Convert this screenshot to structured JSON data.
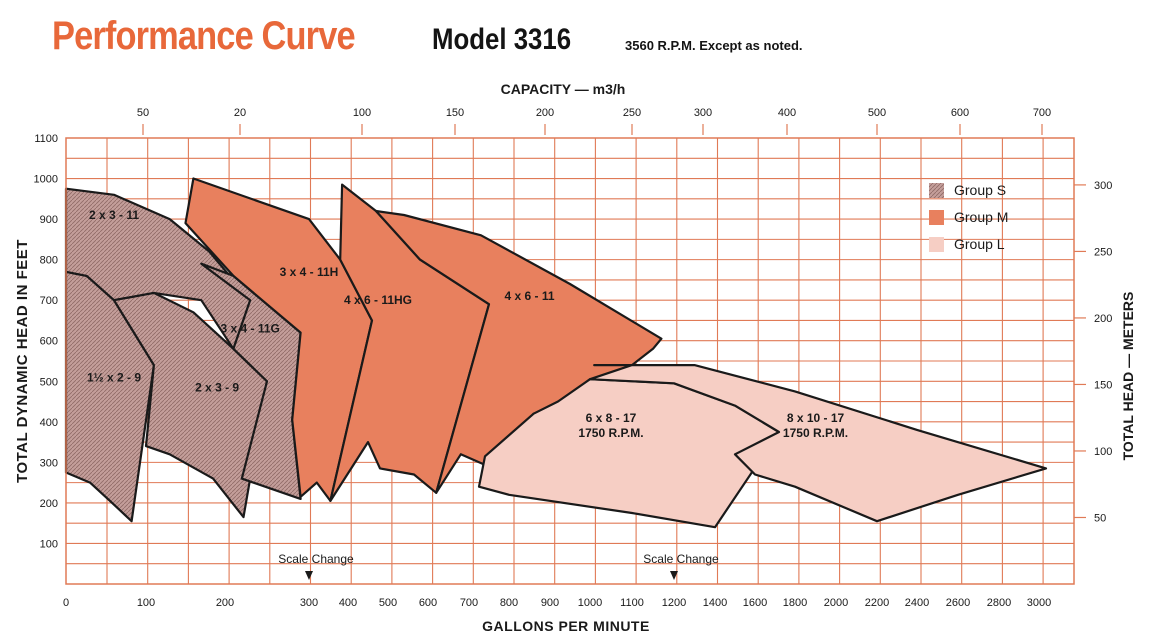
{
  "header": {
    "title": "Performance Curve",
    "model": "Model 3316",
    "note": "3560 R.P.M. Except as noted."
  },
  "chart_data": {
    "type": "area",
    "title": "Performance Curve Model 3316",
    "subtitle": "3560 R.P.M. Except as noted.",
    "xlabel": "GALLONS PER MINUTE",
    "ylabel": "TOTAL DYNAMIC HEAD IN FEET",
    "x2label": "CAPACITY — m3/h",
    "y2label": "TOTAL HEAD — METERS",
    "xticks": [
      "0",
      "100",
      "200",
      "300",
      "400",
      "500",
      "600",
      "700",
      "800",
      "900",
      "1000",
      "1100",
      "1200",
      "1400",
      "1600",
      "1800",
      "2000",
      "2200",
      "2400",
      "2600",
      "2800",
      "3000"
    ],
    "x2ticks": [
      "50",
      "20",
      "100",
      "150",
      "200",
      "250",
      "300",
      "400",
      "500",
      "600",
      "700"
    ],
    "yticks": [
      "100",
      "200",
      "300",
      "400",
      "500",
      "600",
      "700",
      "800",
      "900",
      "1000",
      "1100"
    ],
    "y2ticks": [
      "50",
      "100",
      "150",
      "200",
      "250",
      "300"
    ],
    "ylim": [
      0,
      1100
    ],
    "grid": true,
    "scale_change_label": "Scale Change",
    "scale_changes_gpm": [
      300,
      1200
    ],
    "legend_position": "top-right",
    "legend": [
      {
        "name": "Group S",
        "color": "#c49e9a",
        "hatch": true
      },
      {
        "name": "Group M",
        "color": "#e8805e",
        "hatch": false
      },
      {
        "name": "Group L",
        "color": "#f6cec4",
        "hatch": false
      }
    ],
    "series": [
      {
        "name": "1½ x 2 - 9",
        "group": "S",
        "outline": [
          [
            0,
            770
          ],
          [
            26,
            760
          ],
          [
            60,
            700
          ],
          [
            110,
            540
          ],
          [
            82,
            155
          ],
          [
            55,
            205
          ],
          [
            30,
            250
          ],
          [
            0,
            275
          ]
        ]
      },
      {
        "name": "2 x 3 - 11",
        "group": "S",
        "outline": [
          [
            0,
            975
          ],
          [
            60,
            960
          ],
          [
            130,
            900
          ],
          [
            180,
            820
          ],
          [
            230,
            700
          ],
          [
            210,
            580
          ],
          [
            170,
            700
          ],
          [
            110,
            718
          ],
          [
            60,
            700
          ],
          [
            26,
            760
          ],
          [
            0,
            770
          ]
        ]
      },
      {
        "name": "2 x 3 - 9",
        "group": "S",
        "outline": [
          [
            60,
            700
          ],
          [
            110,
            718
          ],
          [
            160,
            670
          ],
          [
            210,
            580
          ],
          [
            250,
            500
          ],
          [
            222,
            165
          ],
          [
            185,
            260
          ],
          [
            130,
            320
          ],
          [
            100,
            340
          ],
          [
            110,
            540
          ]
        ]
      },
      {
        "name": "3 x 4 - 11G",
        "group": "S",
        "outline": [
          [
            170,
            790
          ],
          [
            210,
            760
          ],
          [
            290,
            620
          ],
          [
            280,
            405
          ],
          [
            290,
            210
          ],
          [
            220,
            260
          ],
          [
            250,
            500
          ],
          [
            210,
            580
          ],
          [
            230,
            700
          ]
        ]
      },
      {
        "name": "3 x 4 - 11H",
        "group": "M",
        "outline": [
          [
            160,
            1000
          ],
          [
            300,
            900
          ],
          [
            380,
            800
          ],
          [
            460,
            650
          ],
          [
            355,
            205
          ],
          [
            320,
            250
          ],
          [
            290,
            215
          ],
          [
            280,
            405
          ],
          [
            290,
            620
          ],
          [
            210,
            760
          ],
          [
            150,
            890
          ]
        ]
      },
      {
        "name": "4 x 6 - 11HG",
        "group": "M",
        "outline": [
          [
            385,
            985
          ],
          [
            470,
            920
          ],
          [
            580,
            800
          ],
          [
            750,
            690
          ],
          [
            620,
            225
          ],
          [
            565,
            270
          ],
          [
            480,
            285
          ],
          [
            450,
            350
          ],
          [
            355,
            205
          ],
          [
            460,
            650
          ],
          [
            380,
            800
          ]
        ]
      },
      {
        "name": "4 x 6 - 11",
        "group": "M",
        "outline": [
          [
            540,
            910
          ],
          [
            730,
            860
          ],
          [
            950,
            740
          ],
          [
            1170,
            605
          ],
          [
            1150,
            580
          ],
          [
            1100,
            540
          ],
          [
            1000,
            450
          ],
          [
            860,
            420
          ],
          [
            760,
            285
          ],
          [
            680,
            320
          ],
          [
            620,
            225
          ],
          [
            750,
            690
          ],
          [
            580,
            800
          ],
          [
            470,
            920
          ]
        ]
      },
      {
        "name": "6 x 8 - 17 1750 R.P.M.",
        "group": "L",
        "outline": [
          [
            1000,
            505
          ],
          [
            1200,
            495
          ],
          [
            1500,
            440
          ],
          [
            1720,
            375
          ],
          [
            1400,
            140
          ],
          [
            1100,
            175
          ],
          [
            800,
            220
          ],
          [
            725,
            240
          ],
          [
            740,
            315
          ],
          [
            860,
            420
          ],
          [
            920,
            450
          ]
        ]
      },
      {
        "name": "8 x 10 - 17 1750 R.P.M.",
        "group": "L",
        "outline": [
          [
            1010,
            540
          ],
          [
            1300,
            540
          ],
          [
            1800,
            475
          ],
          [
            2400,
            380
          ],
          [
            3040,
            285
          ],
          [
            2600,
            220
          ],
          [
            2200,
            155
          ],
          [
            1800,
            240
          ],
          [
            1600,
            270
          ],
          [
            1500,
            320
          ],
          [
            1720,
            375
          ],
          [
            1500,
            440
          ],
          [
            1200,
            495
          ],
          [
            1000,
            505
          ],
          [
            1100,
            540
          ]
        ]
      }
    ]
  }
}
